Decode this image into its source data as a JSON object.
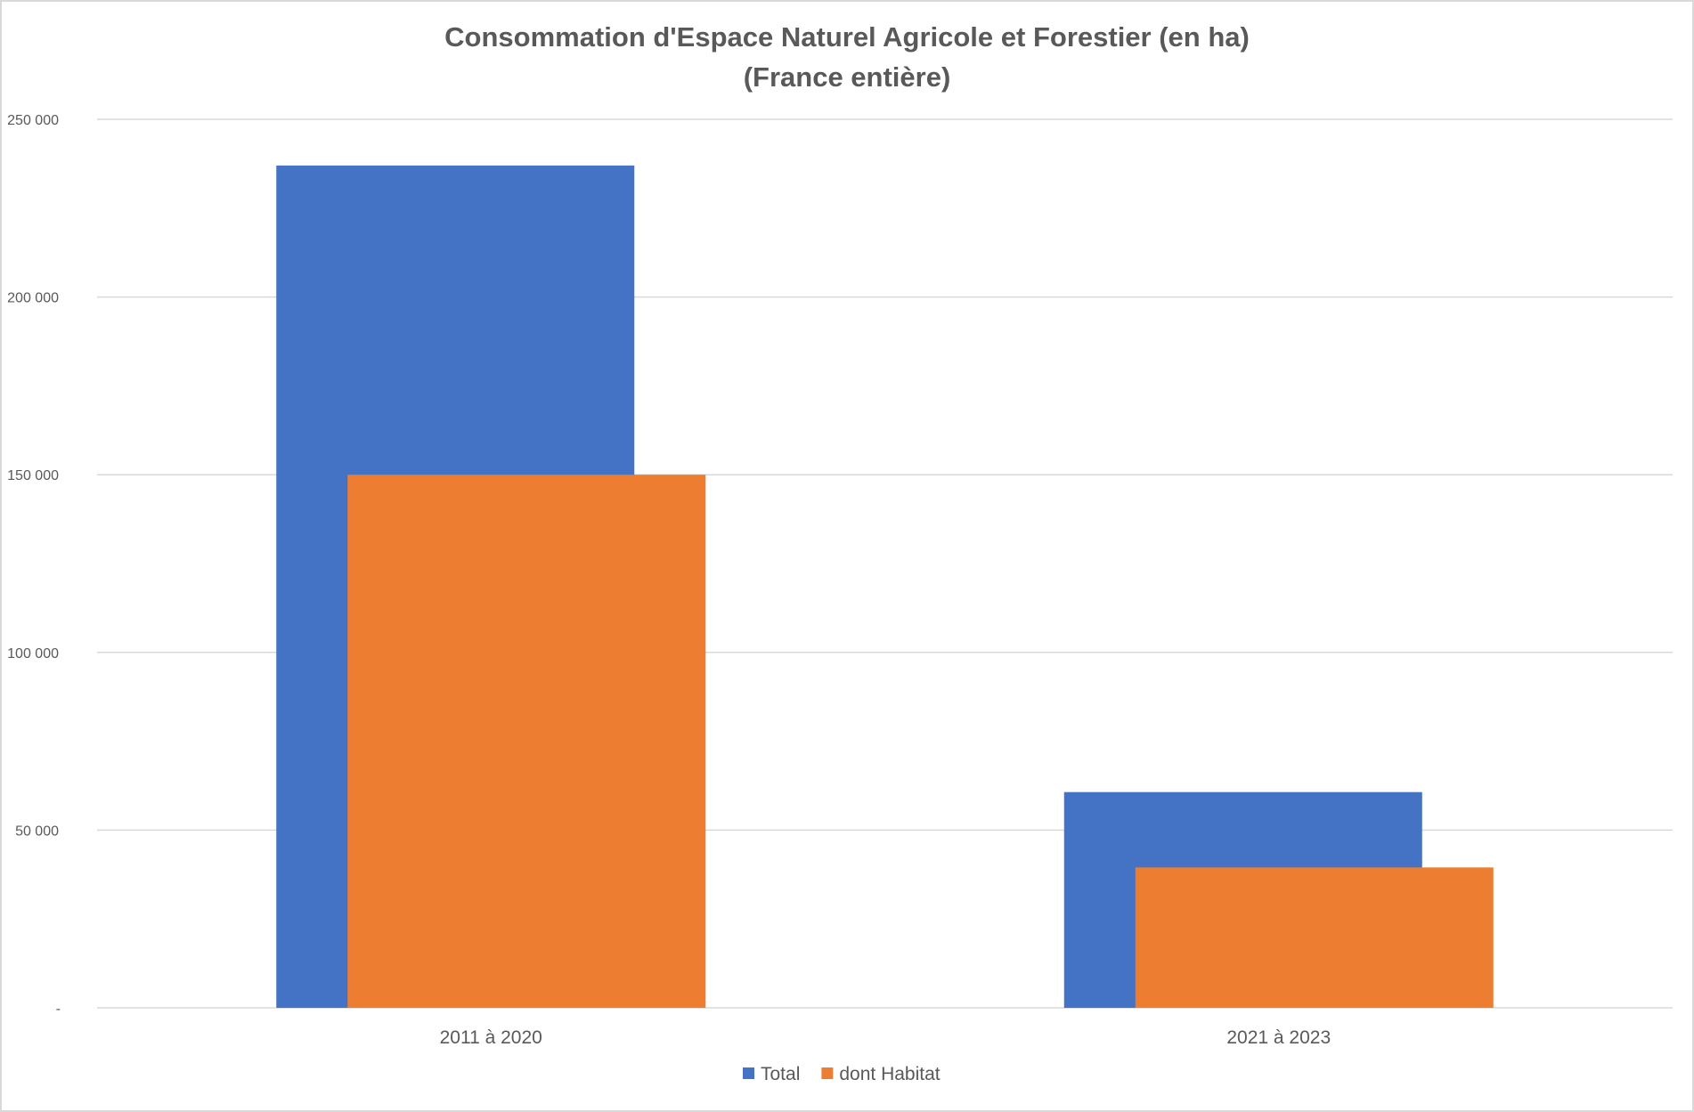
{
  "chart_data": {
    "type": "bar",
    "title": "Consommation d'Espace Naturel Agricole et Forestier (en ha)",
    "subtitle": "(France entière)",
    "xlabel": "",
    "ylabel": "",
    "categories": [
      "2011 à 2020",
      "2021 à 2023"
    ],
    "series": [
      {
        "name": "Total",
        "color": "#4472C4",
        "values": [
          237000,
          60700
        ]
      },
      {
        "name": "dont Habitat",
        "color": "#ED7D31",
        "values": [
          150000,
          39500
        ]
      }
    ],
    "ylim": [
      0,
      250000
    ],
    "yticks": [
      0,
      50000,
      100000,
      150000,
      200000,
      250000
    ],
    "ytick_labels": [
      "-",
      "50 000",
      "100 000",
      "150 000",
      "200 000",
      "250 000"
    ],
    "grid": true,
    "legend_position": "bottom"
  }
}
